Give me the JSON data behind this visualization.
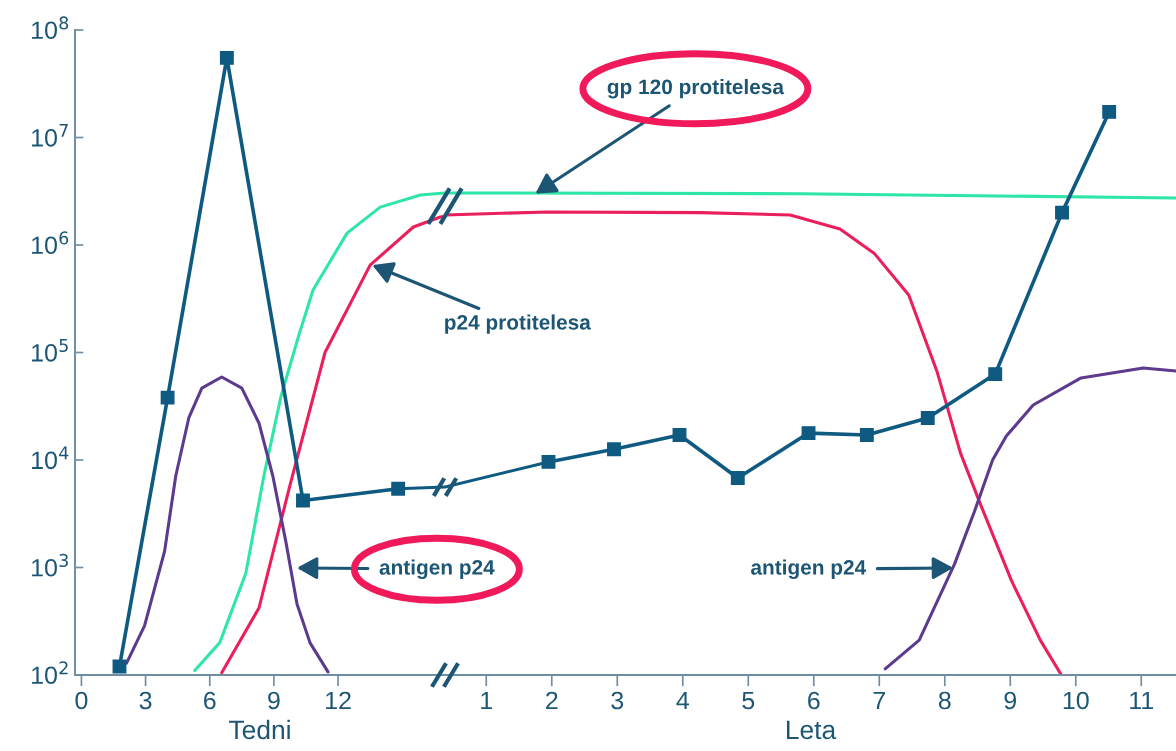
{
  "chart_data": [
    {
      "type": "line",
      "log": "y",
      "grid": false,
      "legend": false,
      "xlabel": "Tedni",
      "xlim": [
        -0.3,
        17.0
      ],
      "ylim": [
        100,
        100000000
      ],
      "xticks": [
        0,
        3,
        6,
        9,
        12
      ],
      "yticks": [
        {
          "value": 100,
          "label": "10$^{2}$"
        },
        {
          "value": 1000,
          "label": "10$^{3}$"
        },
        {
          "value": 10000,
          "label": "10$^{4}$"
        },
        {
          "value": 100000,
          "label": "10$^{5}$"
        },
        {
          "value": 1000000,
          "label": "10$^{6}$"
        },
        {
          "value": 10000000,
          "label": "10$^{7}$"
        },
        {
          "value": 100000000,
          "label": "10$^{8}$"
        }
      ],
      "series": [
        {
          "color": "#2ee6a6",
          "marker": "none",
          "x": [
            5.3,
            6.47,
            7.69,
            8.53,
            9.33,
            10.17,
            10.83,
            12.42,
            13.97,
            15.85,
            17.0
          ],
          "values": [
            110,
            200,
            890,
            7100,
            39000,
            146000,
            381000,
            1290000,
            2250000,
            2920000,
            3050000
          ]
        },
        {
          "color": "#ea1f5c",
          "marker": "none",
          "x": [
            6.56,
            8.3,
            9.75,
            11.39,
            13.5,
            15.52,
            16.78,
            17.0
          ],
          "values": [
            105,
            420,
            5800,
            100000,
            650000,
            1470000,
            1820000,
            1850000
          ]
        },
        {
          "color": "#5c3a8e",
          "marker": "none",
          "x": [
            2.11,
            2.95,
            3.89,
            4.41,
            5.02,
            5.63,
            6.56,
            7.5,
            8.3,
            8.95,
            9.56,
            10.08,
            10.69,
            11.53
          ],
          "values": [
            129,
            286,
            1420,
            7100,
            24600,
            46700,
            59200,
            46700,
            22100,
            7100,
            1730,
            457,
            199,
            107
          ]
        },
        {
          "color": "#0f5a80",
          "x": [
            14.81,
            17.0
          ],
          "values": [
            5400,
            5600
          ]
        },
        {
          "color": "#0f5a80",
          "marker": "square",
          "x": [
            1.78,
            4.03,
            6.8,
            10.36,
            14.81
          ],
          "values": [
            120,
            38000,
            55000000,
            4200,
            5400
          ]
        }
      ],
      "annotations": [
        {
          "text": "p24 protitelesa",
          "x": 13.6,
          "y": 650000
        },
        "antigen p24"
      ]
    },
    {
      "type": "line",
      "log": "y",
      "grid": false,
      "legend": false,
      "xlabel": "Leta",
      "tick_labels": "x",
      "xlim": [
        0.37,
        11.53
      ],
      "ylim": [
        100,
        100000000
      ],
      "xticks": [
        1,
        2,
        3,
        4,
        5,
        6,
        7,
        8,
        9,
        10,
        11
      ],
      "series": [
        {
          "color": "#2ee6a6",
          "marker": "none",
          "x": [
            0.37,
            5.79,
            11.53
          ],
          "values": [
            3050000,
            3000000,
            2740000
          ]
        },
        {
          "color": "#ea1f5c",
          "marker": "none",
          "x": [
            0.37,
            1.93,
            4.27,
            5.64,
            6.4,
            6.92,
            7.45,
            7.88,
            8.24,
            8.55,
            9.02,
            9.46,
            9.78
          ],
          "values": [
            1900000,
            2030000,
            2000000,
            1900000,
            1410000,
            840000,
            343000,
            67000,
            11600,
            3800,
            750,
            210,
            100
          ]
        },
        {
          "color": "#5c3a8e",
          "marker": "none",
          "x": [
            7.09,
            7.61,
            8.15,
            8.45,
            8.73,
            8.94,
            9.35,
            10.08,
            11.03,
            11.53
          ],
          "values": [
            114,
            211,
            1080,
            3280,
            10000,
            16700,
            32500,
            58000,
            71800,
            67300
          ]
        },
        {
          "color": "#0f5a80",
          "x": [
            0.37,
            1.95
          ],
          "values": [
            5600,
            9600
          ]
        },
        {
          "color": "#0f5a80",
          "marker": "square",
          "x": [
            1.95,
            2.95,
            3.95,
            4.84,
            5.92,
            6.81,
            7.74,
            8.77,
            9.79,
            10.51
          ],
          "values": [
            9600,
            12600,
            17100,
            6800,
            17800,
            17100,
            24600,
            63000,
            2000000,
            17300000
          ]
        }
      ],
      "annotations": [
        {
          "text": "gp 120 protitelesa",
          "x": 1.75,
          "y": 3000000
        },
        "antigen p24"
      ]
    }
  ]
}
